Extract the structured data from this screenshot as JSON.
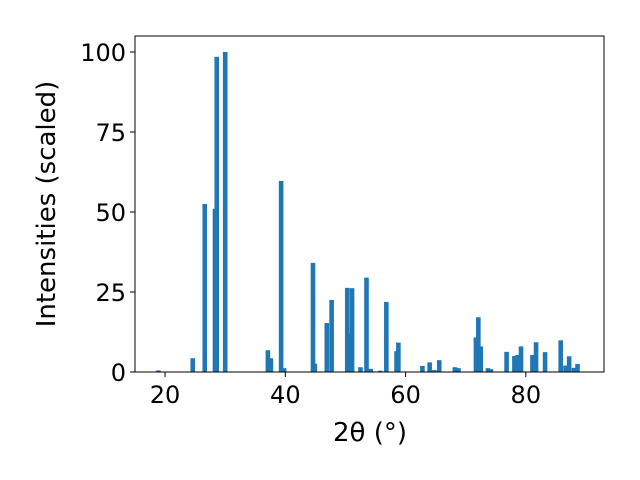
{
  "chart_data": {
    "type": "bar",
    "xlabel": "2θ (°)",
    "ylabel": "Intensities (scaled)",
    "xlim": [
      15,
      93
    ],
    "ylim": [
      0,
      105
    ],
    "xticks": [
      20,
      40,
      60,
      80
    ],
    "yticks": [
      0,
      25,
      50,
      75,
      100
    ],
    "grid": false,
    "bar_color": "#1f77b4",
    "series": [
      {
        "x": [
          18.9,
          24.6,
          26.6,
          28.3,
          28.6,
          30.0,
          37.1,
          37.6,
          39.3,
          39.8,
          44.6,
          44.9,
          46.9,
          47.7,
          50.3,
          50.8,
          51.1,
          52.5,
          53.5,
          54.2,
          55.8,
          56.8,
          58.5,
          58.8,
          62.8,
          64.0,
          64.8,
          65.6,
          68.2,
          68.8,
          71.7,
          72.1,
          72.5,
          73.7,
          74.2,
          76.8,
          78.1,
          78.6,
          79.2,
          81.1,
          81.7,
          83.2,
          85.8,
          86.6,
          87.2,
          88.0,
          88.6
        ],
        "y": [
          0.5,
          4.3,
          52.5,
          51.0,
          98.5,
          100.0,
          6.8,
          4.3,
          59.7,
          1.2,
          34.1,
          2.6,
          15.3,
          22.5,
          26.3,
          12.0,
          26.2,
          1.5,
          29.5,
          1.0,
          0.4,
          21.9,
          6.5,
          9.2,
          1.9,
          3.0,
          0.6,
          3.7,
          1.5,
          1.2,
          10.8,
          17.1,
          8.0,
          1.2,
          0.9,
          6.3,
          5.0,
          5.3,
          8.0,
          5.3,
          9.3,
          6.2,
          9.9,
          2.0,
          4.9,
          1.3,
          2.5
        ]
      }
    ]
  }
}
